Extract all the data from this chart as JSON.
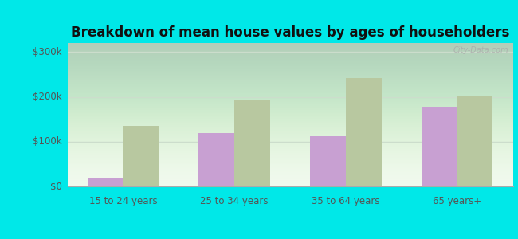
{
  "title": "Breakdown of mean house values by ages of householders",
  "categories": [
    "15 to 24 years",
    "25 to 34 years",
    "35 to 64 years",
    "65 years+"
  ],
  "series": {
    "Wichita County": [
      20000,
      120000,
      112000,
      178000
    ],
    "Kansas": [
      135000,
      193000,
      242000,
      203000
    ]
  },
  "bar_colors": {
    "Wichita County": "#c8a0d2",
    "Kansas": "#b8c8a0"
  },
  "ylim": [
    0,
    320000
  ],
  "yticks": [
    0,
    100000,
    200000,
    300000
  ],
  "ytick_labels": [
    "$0",
    "$100k",
    "$200k",
    "$300k"
  ],
  "outer_background": "#00e8e8",
  "title_fontsize": 12,
  "legend_fontsize": 9,
  "tick_fontsize": 8.5,
  "bar_width": 0.32,
  "grid_color": "#ccddcc",
  "watermark": "City-Data.com"
}
